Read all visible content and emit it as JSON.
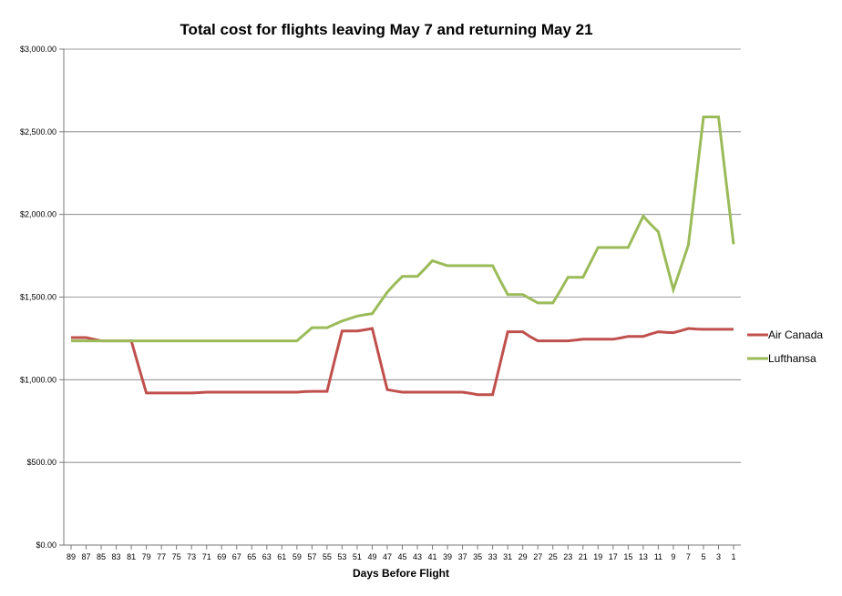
{
  "chart_data": {
    "type": "line",
    "title": "Total cost for flights leaving May 7 and returning May 21",
    "xlabel": "Days Before Flight",
    "ylabel": "",
    "ylim": [
      0,
      3000
    ],
    "yticks": [
      0,
      500,
      1000,
      1500,
      2000,
      2500,
      3000
    ],
    "ytick_labels": [
      "$0.00",
      "$500.00",
      "$1,000.00",
      "$1,500.00",
      "$2,000.00",
      "$2,500.00",
      "$3,000.00"
    ],
    "grid": true,
    "legend_position": "right",
    "x": [
      89,
      88,
      87,
      86,
      85,
      84,
      83,
      82,
      81,
      80,
      79,
      78,
      77,
      76,
      75,
      74,
      73,
      72,
      71,
      70,
      69,
      68,
      67,
      66,
      65,
      64,
      63,
      62,
      61,
      60,
      59,
      58,
      57,
      56,
      55,
      54,
      53,
      52,
      51,
      50,
      49,
      48,
      47,
      46,
      45,
      44,
      43,
      42,
      41,
      40,
      39,
      38,
      37,
      36,
      35,
      34,
      33,
      32,
      31,
      30,
      29,
      28,
      27,
      26,
      25,
      24,
      23,
      22,
      21,
      20,
      19,
      18,
      17,
      16,
      15,
      14,
      13,
      12,
      11,
      10,
      9,
      8,
      7,
      6,
      5,
      4,
      3,
      2,
      1
    ],
    "xtick_labels": [
      "89",
      "87",
      "85",
      "83",
      "81",
      "79",
      "77",
      "75",
      "73",
      "71",
      "69",
      "67",
      "65",
      "63",
      "61",
      "59",
      "57",
      "55",
      "53",
      "51",
      "49",
      "47",
      "45",
      "43",
      "41",
      "39",
      "37",
      "35",
      "33",
      "31",
      "29",
      "27",
      "25",
      "23",
      "21",
      "19",
      "17",
      "15",
      "13",
      "11",
      "9",
      "7",
      "5",
      "3",
      "1"
    ],
    "series": [
      {
        "name": "Air Canada",
        "color": "#c0504d",
        "values": [
          1255,
          1255,
          1255,
          1245,
          1235,
          1235,
          1235,
          1235,
          1235,
          1075,
          920,
          920,
          920,
          920,
          920,
          920,
          920,
          922,
          925,
          925,
          925,
          925,
          925,
          925,
          925,
          925,
          925,
          925,
          925,
          925,
          925,
          928,
          930,
          930,
          930,
          1115,
          1295,
          1295,
          1295,
          1302,
          1310,
          1125,
          940,
          932,
          925,
          925,
          925,
          925,
          925,
          925,
          925,
          925,
          925,
          918,
          910,
          910,
          910,
          1100,
          1290,
          1290,
          1290,
          1260,
          1235,
          1235,
          1235,
          1235,
          1235,
          1240,
          1245,
          1245,
          1245,
          1245,
          1245,
          1253,
          1262,
          1262,
          1262,
          1277,
          1290,
          1287,
          1285,
          1297,
          1310,
          1307,
          1305,
          1305,
          1305,
          1305,
          1305
        ]
      },
      {
        "name": "Lufthansa",
        "color": "#9bbb59",
        "values": [
          1235,
          1235,
          1235,
          1235,
          1235,
          1235,
          1235,
          1235,
          1235,
          1235,
          1235,
          1235,
          1235,
          1235,
          1235,
          1235,
          1235,
          1235,
          1235,
          1235,
          1235,
          1235,
          1235,
          1235,
          1235,
          1235,
          1235,
          1235,
          1235,
          1235,
          1235,
          1275,
          1315,
          1315,
          1315,
          1335,
          1355,
          1370,
          1385,
          1393,
          1400,
          1465,
          1530,
          1580,
          1625,
          1625,
          1625,
          1672,
          1720,
          1705,
          1690,
          1690,
          1690,
          1690,
          1690,
          1690,
          1690,
          1600,
          1515,
          1515,
          1515,
          1490,
          1465,
          1465,
          1465,
          1540,
          1620,
          1620,
          1620,
          1710,
          1800,
          1800,
          1800,
          1800,
          1800,
          1895,
          1990,
          1940,
          1895,
          1720,
          1545,
          1680,
          1815,
          2200,
          2590,
          2590,
          2590,
          2205,
          1820
        ]
      }
    ]
  }
}
